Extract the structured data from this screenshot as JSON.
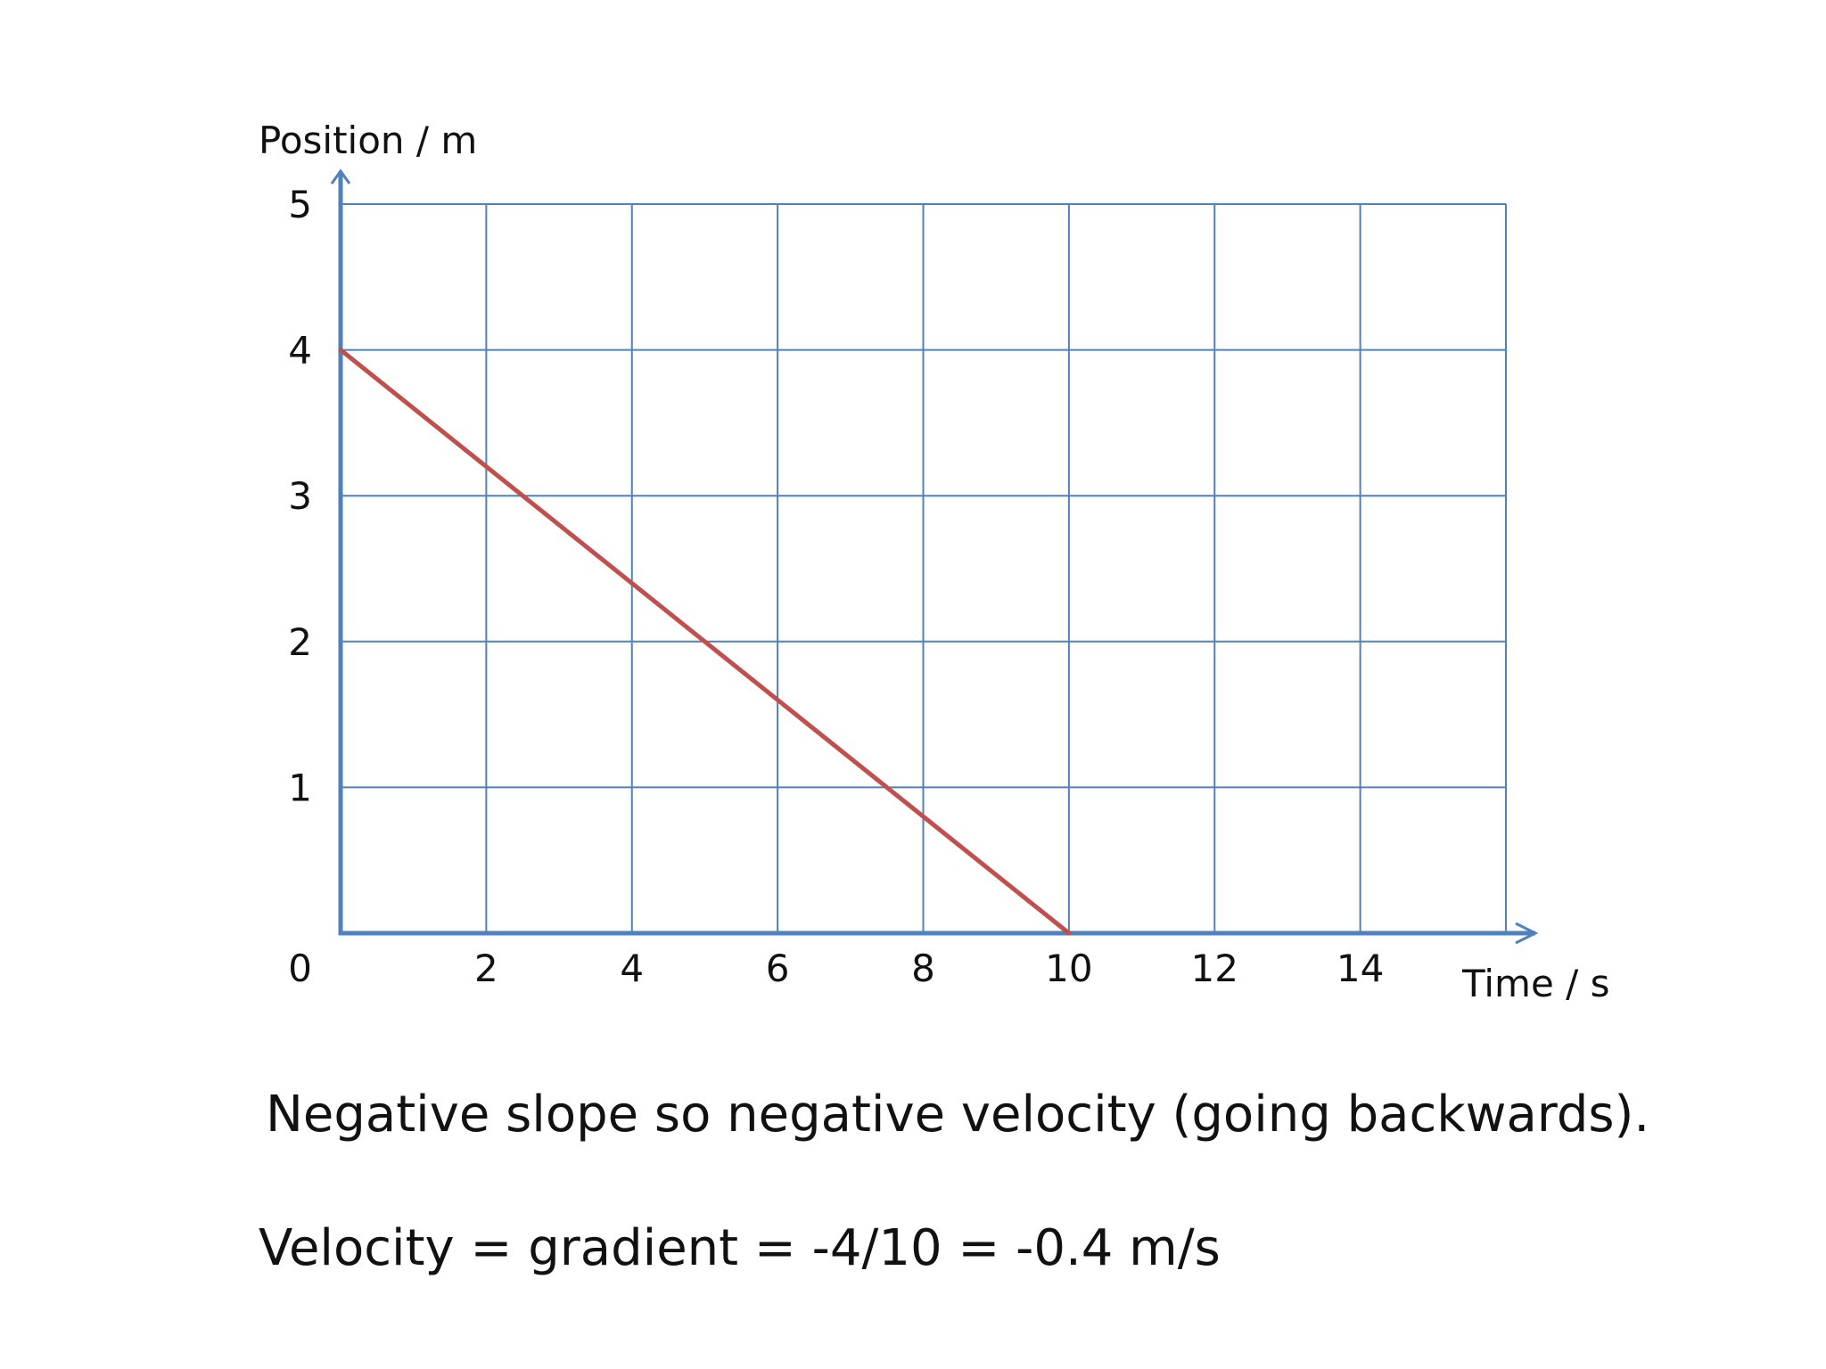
{
  "chart_data": {
    "type": "line",
    "title": "",
    "xlabel": "Time / s",
    "ylabel": "Position / m",
    "xlim": [
      0,
      16
    ],
    "ylim": [
      0,
      5
    ],
    "x_ticks": [
      2,
      4,
      6,
      8,
      10,
      12,
      14
    ],
    "y_ticks": [
      1,
      2,
      3,
      4,
      5
    ],
    "origin_label": "0",
    "grid": true,
    "series": [
      {
        "x": [
          0,
          10
        ],
        "y": [
          4,
          0
        ],
        "color": "#c0504d"
      }
    ],
    "colors": {
      "axis": "#4f81bd",
      "grid": "#4f81bd",
      "line": "#c0504d"
    }
  },
  "captions": {
    "line_1": "Negative slope so negative velocity (going backwards).",
    "line_2": "Velocity = gradient = -4/10 = -0.4 m/s"
  }
}
